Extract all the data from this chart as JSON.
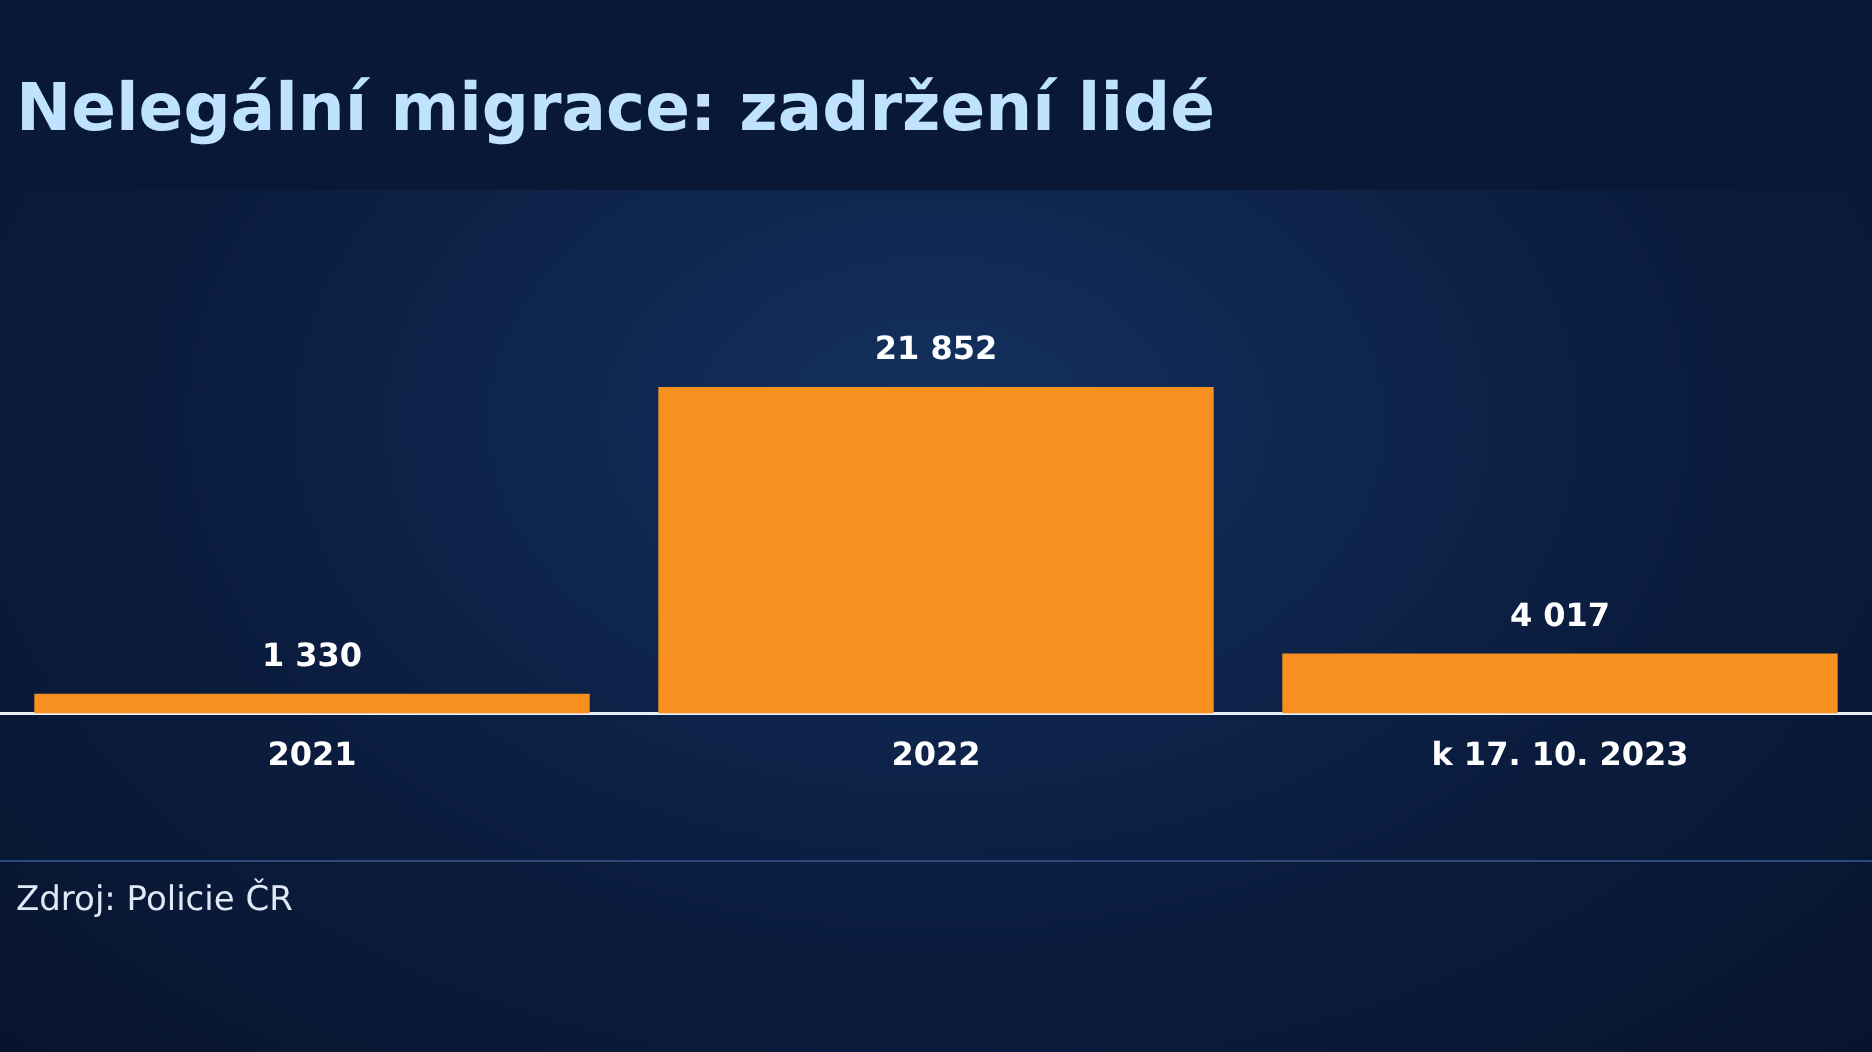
{
  "chart_data": {
    "type": "bar",
    "title": "Nelegální migrace: zadržení lidé",
    "categories": [
      "2021",
      "2022",
      "k 17. 10. 2023"
    ],
    "values": [
      1330,
      21852,
      4017
    ],
    "color": "#f7901e",
    "data_labels": true,
    "value_labels": [
      "1 330",
      "21 852",
      "4 017"
    ],
    "annotations": [
      "Zdroj: Policie ČR"
    ],
    "grid": false,
    "legend": false
  }
}
